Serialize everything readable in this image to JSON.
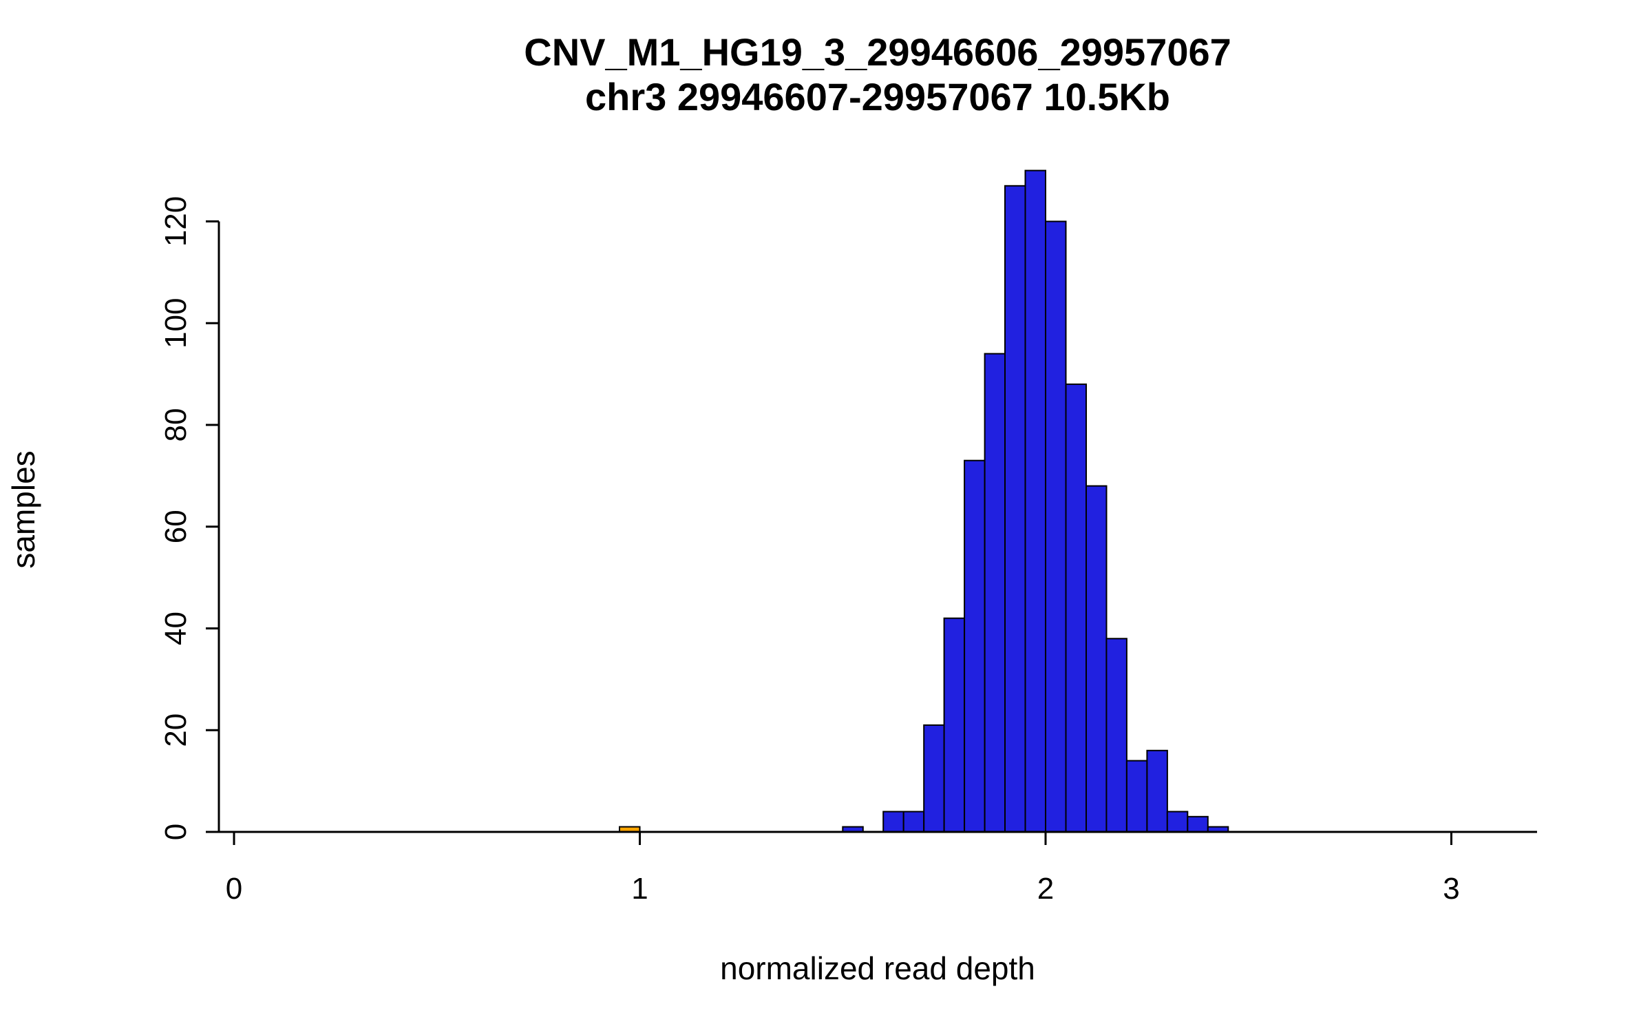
{
  "chart_data": {
    "type": "bar",
    "subtype": "histogram",
    "title": "CNV_M1_HG19_3_29946606_29957067",
    "subtitle": "chr3 29946607-29957067 10.5Kb",
    "xlabel": "normalized read depth",
    "ylabel": "samples",
    "bin_width": 0.05,
    "xlim": [
      -0.04,
      3.21
    ],
    "ylim": [
      0,
      130
    ],
    "xticks": [
      0,
      1,
      2,
      3
    ],
    "yticks": [
      0,
      20,
      40,
      60,
      80,
      100,
      120
    ],
    "grid": false,
    "legend": "none",
    "colors": {
      "bar": "#2121e0",
      "bar_stroke": "#000000",
      "highlight": "#ffa500",
      "axis": "#000000"
    },
    "bins": [
      {
        "x": 0.95,
        "count": 1,
        "color": "highlight"
      },
      {
        "x": 1.5,
        "count": 1
      },
      {
        "x": 1.6,
        "count": 4
      },
      {
        "x": 1.65,
        "count": 4
      },
      {
        "x": 1.7,
        "count": 21
      },
      {
        "x": 1.75,
        "count": 42
      },
      {
        "x": 1.8,
        "count": 73
      },
      {
        "x": 1.85,
        "count": 94
      },
      {
        "x": 1.9,
        "count": 127
      },
      {
        "x": 1.95,
        "count": 130
      },
      {
        "x": 2.0,
        "count": 120
      },
      {
        "x": 2.05,
        "count": 88
      },
      {
        "x": 2.1,
        "count": 68
      },
      {
        "x": 2.15,
        "count": 38
      },
      {
        "x": 2.2,
        "count": 14
      },
      {
        "x": 2.25,
        "count": 16
      },
      {
        "x": 2.3,
        "count": 4
      },
      {
        "x": 2.35,
        "count": 3
      },
      {
        "x": 2.4,
        "count": 1
      }
    ]
  }
}
